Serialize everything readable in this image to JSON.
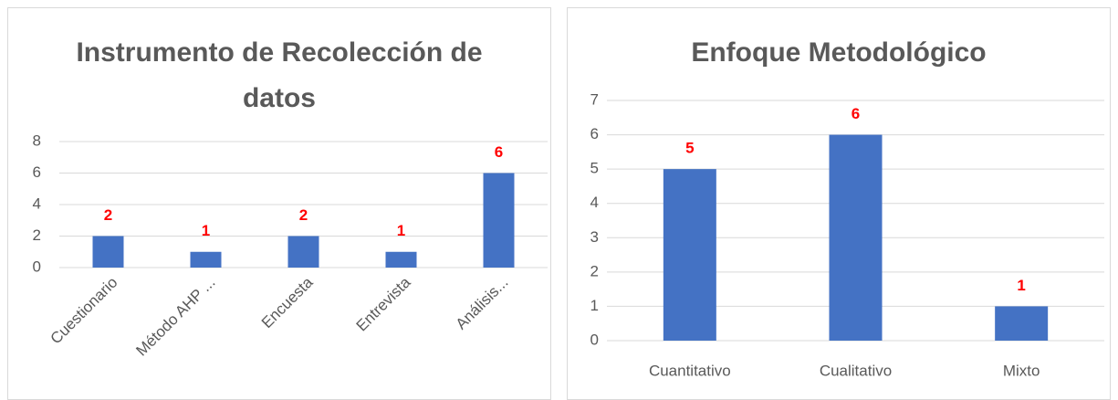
{
  "chart_data": [
    {
      "type": "bar",
      "title": "Instrumento de Recolección de datos",
      "categories": [
        "Cuestionario",
        "Método AHP ...",
        "Encuesta",
        "Entrevista",
        "Análisis..."
      ],
      "values": [
        2,
        1,
        2,
        1,
        6
      ],
      "color": "#4472c4",
      "label_color": "#ff0000",
      "ylim": [
        0,
        8
      ],
      "yticks": [
        0,
        2,
        4,
        6,
        8
      ],
      "grid": true
    },
    {
      "type": "bar",
      "title": "Enfoque Metodológico",
      "categories": [
        "Cuantitativo",
        "Cualitativo",
        "Mixto"
      ],
      "values": [
        5,
        6,
        1
      ],
      "color": "#4472c4",
      "label_color": "#ff0000",
      "ylim": [
        0,
        7
      ],
      "yticks": [
        0,
        1,
        2,
        3,
        4,
        5,
        6,
        7
      ],
      "grid": true
    }
  ]
}
